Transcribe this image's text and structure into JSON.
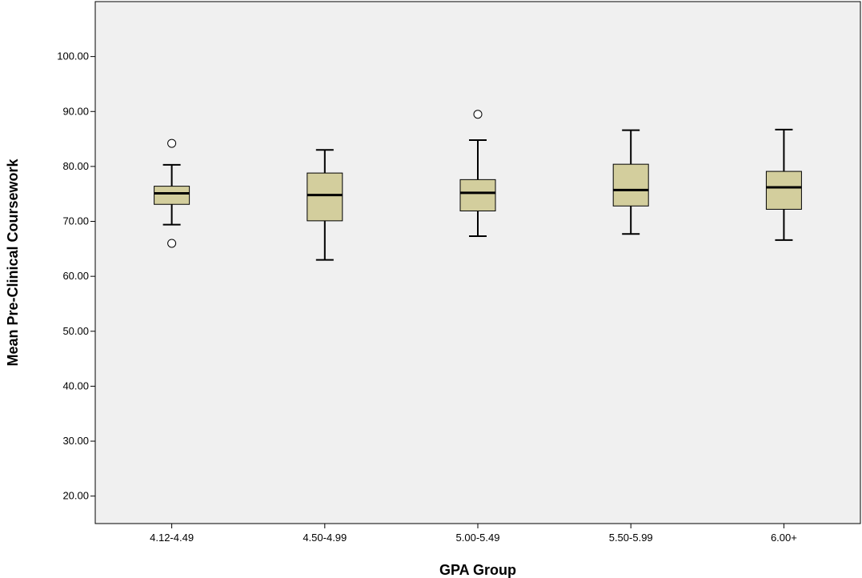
{
  "chart_data": {
    "type": "boxplot",
    "title": "",
    "xlabel": "GPA Group",
    "ylabel": "Mean Pre-Clinical Coursework",
    "ylim": [
      15.0,
      110.0
    ],
    "y_ticks": [
      "20.00",
      "30.00",
      "40.00",
      "50.00",
      "60.00",
      "70.00",
      "80.00",
      "90.00",
      "100.00"
    ],
    "y_tick_values": [
      20,
      30,
      40,
      50,
      60,
      70,
      80,
      90,
      100
    ],
    "categories": [
      "4.12-4.49",
      "4.50-4.99",
      "5.00-5.49",
      "5.50-5.99",
      "6.00+"
    ],
    "boxes": [
      {
        "whisker_low": 69.4,
        "q1": 73.1,
        "median": 75.1,
        "q3": 76.4,
        "whisker_high": 80.3,
        "outliers": [
          84.2,
          66.0
        ]
      },
      {
        "whisker_low": 63.0,
        "q1": 70.1,
        "median": 74.8,
        "q3": 78.8,
        "whisker_high": 83.0,
        "outliers": []
      },
      {
        "whisker_low": 67.3,
        "q1": 71.9,
        "median": 75.2,
        "q3": 77.6,
        "whisker_high": 84.8,
        "outliers": [
          89.5
        ]
      },
      {
        "whisker_low": 67.7,
        "q1": 72.8,
        "median": 75.7,
        "q3": 80.4,
        "whisker_high": 86.6,
        "outliers": []
      },
      {
        "whisker_low": 66.6,
        "q1": 72.2,
        "median": 76.2,
        "q3": 79.1,
        "whisker_high": 86.7,
        "outliers": []
      }
    ],
    "grid": false,
    "colors": {
      "plot_background": "#f0f0f0",
      "box_fill": "#d3ce9d",
      "stroke": "#000000"
    }
  }
}
